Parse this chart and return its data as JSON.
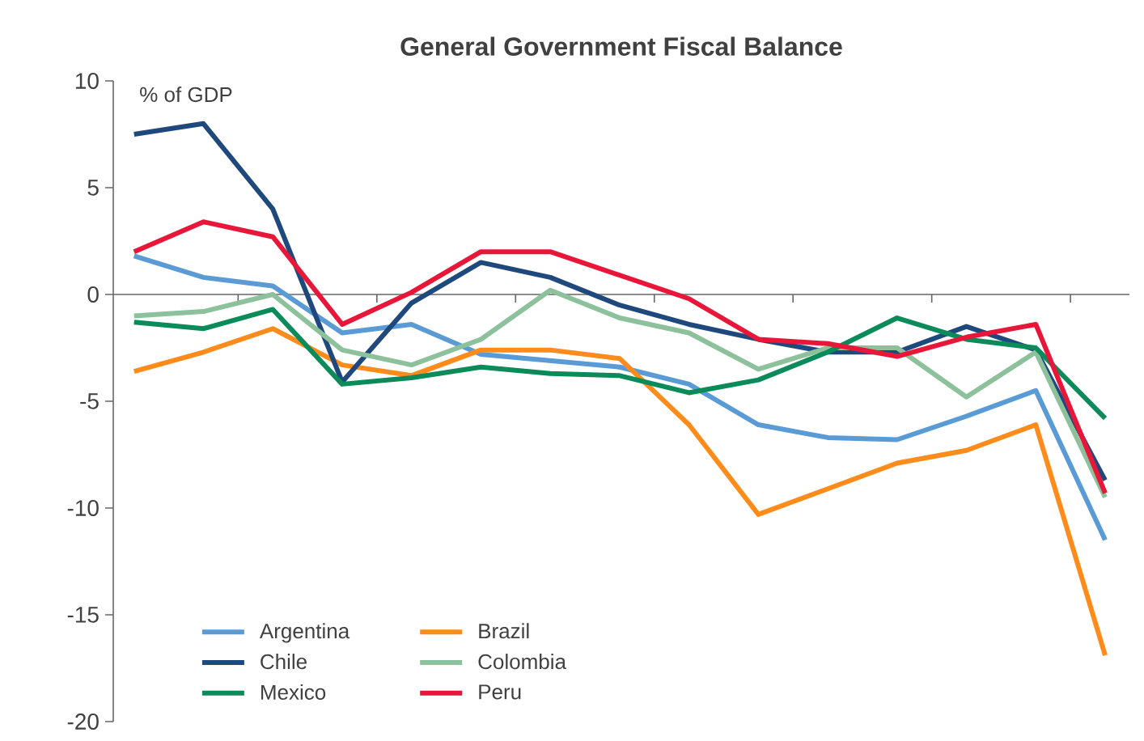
{
  "chart_data": {
    "type": "line",
    "title": "General Government Fiscal Balance",
    "ylabel": "% of GDP",
    "categories": [
      null,
      null,
      null,
      null,
      null,
      null,
      null,
      null,
      null,
      null,
      null,
      null,
      null,
      null,
      null
    ],
    "ylim": [
      -20,
      10
    ],
    "yticks": [
      -20,
      -15,
      -10,
      -5,
      0,
      5,
      10
    ],
    "legend": "bottom left",
    "marker": "none",
    "line_style": "solid",
    "series": [
      {
        "name": "Argentina",
        "color": "#5b9bd5",
        "values": [
          1.8,
          0.8,
          0.4,
          -1.8,
          -1.4,
          -2.8,
          -3.1,
          -3.4,
          -4.2,
          -6.1,
          -6.7,
          -6.8,
          -5.7,
          -4.5,
          -11.5
        ]
      },
      {
        "name": "Brazil",
        "color": "#ff8c1a",
        "values": [
          -3.6,
          -2.7,
          -1.6,
          -3.3,
          -3.8,
          -2.6,
          -2.6,
          -3.0,
          -6.1,
          -10.3,
          -9.1,
          -7.9,
          -7.3,
          -6.1,
          -16.9
        ]
      },
      {
        "name": "Chile",
        "color": "#1f497d",
        "values": [
          7.5,
          8.0,
          4.0,
          -4.1,
          -0.4,
          1.5,
          0.8,
          -0.5,
          -1.4,
          -2.1,
          -2.7,
          -2.7,
          -1.5,
          -2.6,
          -8.7
        ]
      },
      {
        "name": "Colombia",
        "color": "#8cc19c",
        "values": [
          -1.0,
          -0.8,
          0.0,
          -2.6,
          -3.3,
          -2.1,
          0.2,
          -1.1,
          -1.8,
          -3.5,
          -2.5,
          -2.5,
          -4.8,
          -2.7,
          -9.5
        ]
      },
      {
        "name": "Mexico",
        "color": "#0b8a5a",
        "values": [
          -1.3,
          -1.6,
          -0.7,
          -4.2,
          -3.9,
          -3.4,
          -3.7,
          -3.8,
          -4.6,
          -4.0,
          -2.7,
          -1.1,
          -2.1,
          -2.5,
          -5.8
        ]
      },
      {
        "name": "Peru",
        "color": "#e8173a",
        "values": [
          2.0,
          3.4,
          2.7,
          -1.4,
          0.1,
          2.0,
          2.0,
          0.9,
          -0.2,
          -2.1,
          -2.3,
          -2.9,
          -2.0,
          -1.4,
          -9.3
        ]
      }
    ]
  }
}
